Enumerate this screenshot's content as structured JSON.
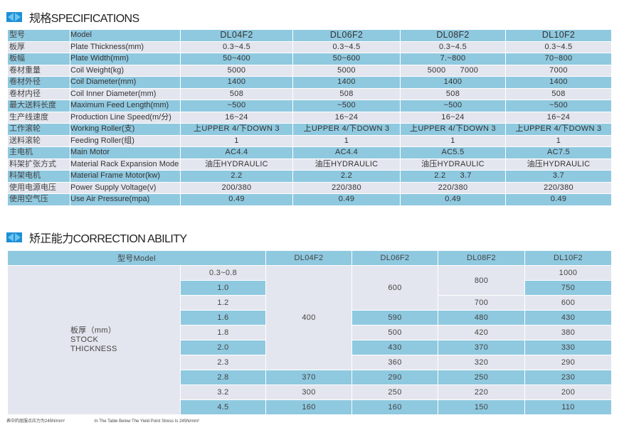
{
  "sections": {
    "spec_title": "规格SPECIFICATIONS",
    "corr_title": "矫正能力CORRECTION ABILITY"
  },
  "colors": {
    "blue_row": "#8fc9e0",
    "light_row": "#e3e6ee",
    "icon": "#1e8fd6"
  },
  "specifications": {
    "rows": [
      {
        "cn": "型号",
        "en": "Model",
        "values": [
          "DL04F2",
          "DL06F2",
          "DL08F2",
          "DL10F2"
        ]
      },
      {
        "cn": "板厚",
        "en": "Plate Thickness(mm)",
        "values": [
          "0.3~4.5",
          "0.3~4.5",
          "0.3~4.5",
          "0.3~4.5"
        ]
      },
      {
        "cn": "板幅",
        "en": "Plate Width(mm)",
        "values": [
          "50~400",
          "50~600",
          "7.~800",
          "70~800"
        ]
      },
      {
        "cn": "卷材重量",
        "en": "Coil Weight(kg)",
        "values": [
          "5000",
          "5000",
          "5000      7000",
          "7000"
        ]
      },
      {
        "cn": "卷材外径",
        "en": "Coil Diameter(mm)",
        "values": [
          "1400",
          "1400",
          "1400",
          "1400"
        ]
      },
      {
        "cn": "卷材内径",
        "en": "Coil Inner Diameter(mm)",
        "values": [
          "508",
          "508",
          "508",
          "508"
        ]
      },
      {
        "cn": "最大送料长度",
        "en": "Maximum Feed Length(mm)",
        "values": [
          "~500",
          "~500",
          "~500",
          "~500"
        ]
      },
      {
        "cn": "生产线速度",
        "en": "Production Line Speed(m/分)",
        "values": [
          "16~24",
          "16~24",
          "16~24",
          "16~24"
        ]
      },
      {
        "cn": "工作滚轮",
        "en": "Working Roller(支)",
        "values": [
          "上UPPER 4/下DOWN 3",
          "上UPPER 4/下DOWN 3",
          "上UPPER 4/下DOWN 3",
          "上UPPER 4/下DOWN 3"
        ]
      },
      {
        "cn": "送料滚轮",
        "en": "Feeding Roller(组)",
        "values": [
          "1",
          "1",
          "1",
          "1"
        ]
      },
      {
        "cn": "主电机",
        "en": "Main Motor",
        "values": [
          "AC4.4",
          "AC4.4",
          "AC5.5",
          "AC7.5"
        ]
      },
      {
        "cn": "料架扩张方式",
        "en": "Material Rack Expansion Mode",
        "values": [
          "油压HYDRAULIC",
          "油压HYDRAULIC",
          "油压HYDRAULIC",
          "油压HYDRAULIC"
        ]
      },
      {
        "cn": "料架电机",
        "en": "Material Frame Motor(kw)",
        "values": [
          "2.2",
          "2.2",
          "2.2      3.7",
          "3.7"
        ]
      },
      {
        "cn": "使用电源电压",
        "en": "Power Supply Voltage(v)",
        "values": [
          "200/380",
          "220/380",
          "220/380",
          "220/380"
        ]
      },
      {
        "cn": "使用空气压",
        "en": "Use Air Pressure(mpa)",
        "values": [
          "0.49",
          "0.49",
          "0.49",
          "0.49"
        ]
      }
    ]
  },
  "correction": {
    "header_label": "型号Model",
    "models": [
      "DL04F2",
      "DL06F2",
      "DL08F2",
      "DL10F2"
    ],
    "row_label_cn": "板厚（mm）",
    "row_label_en1": "STOCK",
    "row_label_en2": "THICKNESS",
    "thickness": [
      "0.3~0.8",
      "1.0",
      "1.2",
      "1.6",
      "1.8",
      "2.0",
      "2.3",
      "2.8",
      "3.2",
      "4.5"
    ],
    "columns": [
      [
        {
          "value": "400",
          "span": 7
        },
        {
          "value": "370"
        },
        {
          "value": "300"
        },
        {
          "value": "160"
        }
      ],
      [
        {
          "value": "600",
          "span": 3
        },
        {
          "value": "590"
        },
        {
          "value": "500"
        },
        {
          "value": "430"
        },
        {
          "value": "360"
        },
        {
          "value": "290"
        },
        {
          "value": "250"
        },
        {
          "value": "160"
        }
      ],
      [
        {
          "value": "800",
          "span": 2
        },
        {
          "value": "700"
        },
        {
          "value": "480"
        },
        {
          "value": "420"
        },
        {
          "value": "370"
        },
        {
          "value": "320"
        },
        {
          "value": "250"
        },
        {
          "value": "220"
        },
        {
          "value": "150"
        }
      ],
      [
        {
          "value": "1000"
        },
        {
          "value": "750"
        },
        {
          "value": "600"
        },
        {
          "value": "430"
        },
        {
          "value": "380"
        },
        {
          "value": "330"
        },
        {
          "value": "290"
        },
        {
          "value": "230"
        },
        {
          "value": "200"
        },
        {
          "value": "110"
        }
      ]
    ]
  },
  "footnote": {
    "cn": "表中的屈服点应力为245N/mm²",
    "en": "In The Table Below The Yield Point Stress Is 245N/mm²"
  }
}
